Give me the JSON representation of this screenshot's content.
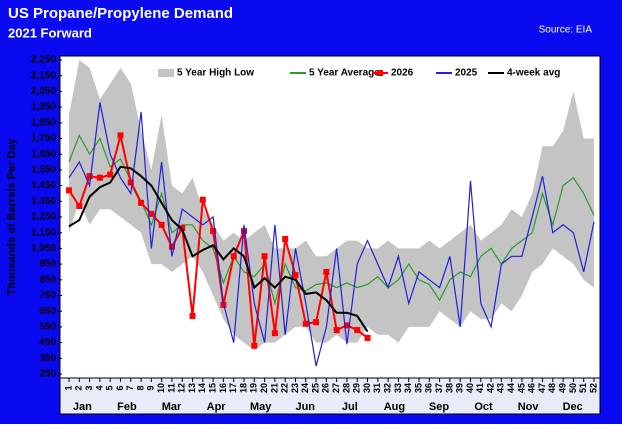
{
  "chart_data": {
    "type": "line",
    "title": "US Propane/Propylene Demand",
    "subtitle": "2021 Forward",
    "source": "Source: EIA",
    "y_label": "Thousands of Barrels Per Day",
    "x": [
      1,
      2,
      3,
      4,
      5,
      6,
      7,
      8,
      9,
      10,
      11,
      12,
      13,
      14,
      15,
      16,
      17,
      18,
      19,
      20,
      21,
      22,
      23,
      24,
      25,
      26,
      27,
      28,
      29,
      30,
      31,
      32,
      33,
      34,
      35,
      36,
      37,
      38,
      39,
      40,
      41,
      42,
      43,
      44,
      45,
      46,
      47,
      48,
      49,
      50,
      51,
      52
    ],
    "xlim": [
      1,
      52
    ],
    "month_labels": [
      "Jan",
      "Feb",
      "Mar",
      "Apr",
      "May",
      "Jun",
      "Jul",
      "Aug",
      "Sep",
      "Oct",
      "Nov",
      "Dec"
    ],
    "ylim": [
      250,
      2250
    ],
    "yticks": [
      250,
      350,
      450,
      550,
      650,
      750,
      850,
      950,
      {
        "value": 1050,
        "label": "1,050"
      },
      {
        "value": 1150,
        "label": "1,150"
      },
      {
        "value": 1250,
        "label": "1,250"
      },
      {
        "value": 1350,
        "label": "1,350"
      },
      {
        "value": 1450,
        "label": "1,450"
      },
      {
        "value": 1550,
        "label": "1,550"
      },
      {
        "value": 1650,
        "label": "1,650"
      },
      {
        "value": 1750,
        "label": "1,750"
      },
      {
        "value": 1850,
        "label": "1,850"
      },
      {
        "value": 1950,
        "label": "1,950"
      },
      {
        "value": 2050,
        "label": "2,050"
      },
      {
        "value": 2150,
        "label": "2,150"
      },
      {
        "value": 2250,
        "label": "2,250"
      }
    ],
    "series": [
      {
        "name": "5 Year High Low",
        "kind": "band",
        "color": "#c4c4c4",
        "high": [
          1900,
          2250,
          2200,
          2000,
          2100,
          2200,
          2100,
          1800,
          1550,
          1900,
          1450,
          1400,
          1500,
          1300,
          1200,
          1100,
          1150,
          1100,
          1150,
          1200,
          1050,
          1050,
          1050,
          1100,
          1000,
          1000,
          1050,
          1100,
          1100,
          1050,
          1050,
          1100,
          1050,
          1050,
          1050,
          1100,
          1050,
          1100,
          1150,
          1200,
          1100,
          1150,
          1200,
          1300,
          1250,
          1400,
          1700,
          1700,
          1800,
          2050,
          1750,
          1750
        ],
        "low": [
          1150,
          1350,
          1200,
          1300,
          1300,
          1250,
          1200,
          1150,
          950,
          950,
          900,
          950,
          1000,
          900,
          750,
          600,
          500,
          450,
          400,
          450,
          450,
          500,
          550,
          550,
          450,
          450,
          500,
          450,
          450,
          550,
          500,
          500,
          450,
          550,
          550,
          550,
          650,
          600,
          550,
          650,
          600,
          600,
          700,
          650,
          750,
          900,
          950,
          1050,
          1000,
          950,
          850,
          800
        ]
      },
      {
        "name": "5 Year Average",
        "kind": "line",
        "color": "#2e9a2e",
        "values": [
          1600,
          1770,
          1650,
          1750,
          1570,
          1620,
          1480,
          1350,
          1200,
          1400,
          1150,
          1200,
          1200,
          1100,
          1050,
          830,
          1000,
          900,
          870,
          950,
          700,
          950,
          800,
          780,
          820,
          830,
          800,
          830,
          800,
          820,
          870,
          800,
          850,
          950,
          850,
          820,
          720,
          850,
          900,
          870,
          1000,
          1050,
          950,
          1050,
          1100,
          1150,
          1400,
          1200,
          1450,
          1500,
          1400,
          1260
        ]
      },
      {
        "name": "2026",
        "kind": "line",
        "markers": true,
        "color": "#ff0000",
        "values": [
          1420,
          1320,
          1510,
          1500,
          1520,
          1770,
          1470,
          1340,
          1270,
          1200,
          1060,
          1180,
          620,
          1360,
          1160,
          690,
          1000,
          1160,
          430,
          1000,
          510,
          1110,
          880,
          570,
          580,
          900,
          530,
          560,
          530,
          480,
          null,
          null,
          null,
          null,
          null,
          null,
          null,
          null,
          null,
          null,
          null,
          null,
          null,
          null,
          null,
          null,
          null,
          null,
          null,
          null,
          null,
          null
        ]
      },
      {
        "name": "2025",
        "kind": "line",
        "color": "#2020d8",
        "values": [
          1500,
          1600,
          1450,
          1980,
          1650,
          1500,
          1400,
          1920,
          1050,
          1600,
          1000,
          1300,
          1250,
          1200,
          1250,
          700,
          450,
          1200,
          700,
          450,
          1200,
          500,
          1050,
          700,
          300,
          550,
          1050,
          440,
          950,
          1100,
          950,
          800,
          1000,
          700,
          900,
          850,
          800,
          1000,
          550,
          1480,
          700,
          550,
          950,
          1000,
          1000,
          1250,
          1510,
          1150,
          1200,
          1150,
          900,
          1220
        ]
      },
      {
        "name": "4-week avg",
        "kind": "line",
        "color": "#000000",
        "values": [
          1190,
          1230,
          1380,
          1440,
          1470,
          1570,
          1560,
          1510,
          1450,
          1340,
          1230,
          1170,
          1000,
          1040,
          1070,
          980,
          1050,
          1000,
          800,
          860,
          800,
          870,
          850,
          760,
          770,
          720,
          640,
          640,
          620,
          520,
          null,
          null,
          null,
          null,
          null,
          null,
          null,
          null,
          null,
          null,
          null,
          null,
          null,
          null,
          null,
          null,
          null,
          null,
          null,
          null,
          null,
          null
        ]
      }
    ]
  }
}
